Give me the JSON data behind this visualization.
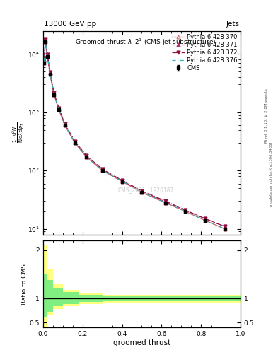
{
  "title": "13000 GeV pp",
  "title_right": "Jets",
  "plot_title": "Groomed thrustλ_2¹ (CMS jet substructure)",
  "xlabel": "groomed thrust",
  "ylabel_ratio": "Ratio to CMS",
  "cms_label": "CMS",
  "watermark": "CMS_2021_I1920187",
  "rivet_label": "Rivet 3.1.10, ≥ 2.8M events",
  "arxiv_label": "mcplots.cern.ch [arXiv:1306.3436]",
  "py_x": [
    0.005,
    0.012,
    0.022,
    0.035,
    0.055,
    0.08,
    0.11,
    0.16,
    0.22,
    0.3,
    0.4,
    0.5,
    0.62,
    0.72,
    0.82,
    0.92
  ],
  "py370_y": [
    7000,
    16000,
    9000,
    4500,
    2000,
    1100,
    600,
    300,
    170,
    100,
    65,
    42,
    28,
    20,
    14,
    10
  ],
  "py371_y": [
    8000,
    17000,
    9500,
    4700,
    2100,
    1150,
    620,
    310,
    175,
    103,
    67,
    44,
    29,
    21,
    15,
    11
  ],
  "py372_y": [
    8500,
    17500,
    9800,
    4900,
    2150,
    1180,
    640,
    320,
    180,
    106,
    68,
    45,
    30,
    21,
    15,
    11
  ],
  "py376_y": [
    7500,
    16500,
    9200,
    4600,
    2050,
    1120,
    610,
    305,
    172,
    101,
    66,
    43,
    28,
    20,
    14,
    10
  ],
  "cms_x": [
    0.005,
    0.012,
    0.022,
    0.035,
    0.055,
    0.08,
    0.11,
    0.16,
    0.22,
    0.3,
    0.4,
    0.5,
    0.62,
    0.72,
    0.82,
    0.92
  ],
  "cms_y": [
    7000,
    16000,
    9000,
    4500,
    2000,
    1100,
    600,
    300,
    170,
    100,
    65,
    42,
    28,
    20,
    14,
    10
  ],
  "color_370": "#d06060",
  "color_371": "#b03070",
  "color_372": "#901040",
  "color_376": "#30b0b0",
  "xlim": [
    0.0,
    1.0
  ],
  "ylim_main": [
    8,
    25000
  ],
  "ylim_ratio": [
    0.4,
    2.2
  ],
  "yellow_band_edges": [
    0.0,
    0.008,
    0.018,
    0.05,
    0.1,
    0.18,
    0.3,
    1.01
  ],
  "yellow_band_lo": [
    0.4,
    0.4,
    0.65,
    0.78,
    0.84,
    0.88,
    0.91,
    0.93
  ],
  "yellow_band_hi": [
    2.1,
    2.1,
    1.6,
    1.3,
    1.18,
    1.12,
    1.08,
    1.07
  ],
  "green_band_edges": [
    0.0,
    0.008,
    0.018,
    0.05,
    0.1,
    0.18,
    0.3,
    1.01
  ],
  "green_band_lo": [
    0.62,
    0.62,
    0.73,
    0.84,
    0.89,
    0.93,
    0.95,
    0.97
  ],
  "green_band_hi": [
    1.5,
    1.5,
    1.38,
    1.22,
    1.13,
    1.08,
    1.05,
    1.03
  ]
}
